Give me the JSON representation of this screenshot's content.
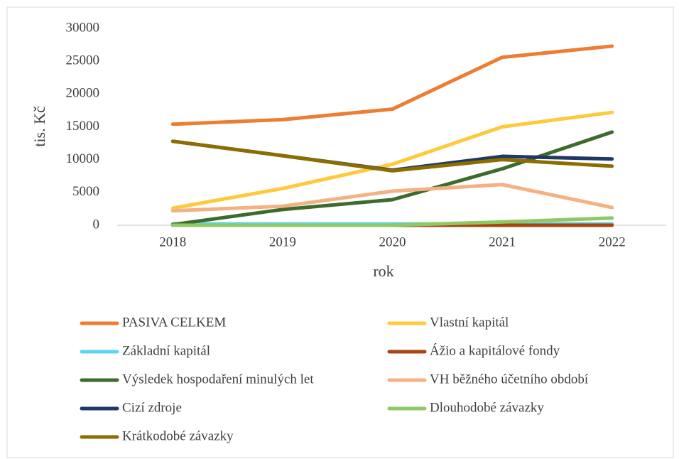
{
  "chart_data": {
    "type": "line",
    "x_label": "rok",
    "y_label": "tis. Kč",
    "categories": [
      "2018",
      "2019",
      "2020",
      "2021",
      "2022"
    ],
    "series": [
      {
        "name": "PASIVA CELKEM",
        "color": "#ed7d31",
        "values": [
          15400,
          16100,
          17700,
          25600,
          27300
        ]
      },
      {
        "name": "Vlastní kapitál",
        "color": "#ffc93c",
        "values": [
          2600,
          5600,
          9300,
          15000,
          17200
        ]
      },
      {
        "name": "Základní kapitál",
        "color": "#5fd3f3",
        "values": [
          200,
          200,
          200,
          200,
          200
        ]
      },
      {
        "name": "Ážio a kapitálové fondy",
        "color": "#a9440f",
        "values": [
          0,
          0,
          0,
          0,
          0
        ]
      },
      {
        "name": "Výsledek hospodaření minulých let",
        "color": "#3d6b2c",
        "values": [
          100,
          2400,
          3900,
          8600,
          14200
        ]
      },
      {
        "name": "VH běžného účetního období",
        "color": "#f4b183",
        "values": [
          2200,
          2900,
          5200,
          6200,
          2700
        ]
      },
      {
        "name": "Cizí zdroje",
        "color": "#203864",
        "values": [
          12800,
          10600,
          8400,
          10500,
          10100
        ]
      },
      {
        "name": "Dlouhodobé závazky",
        "color": "#8fc965",
        "values": [
          0,
          0,
          0,
          500,
          1100
        ]
      },
      {
        "name": "Krátkodobé závazky",
        "color": "#8c6d00",
        "values": [
          12800,
          10600,
          8300,
          10000,
          9000
        ]
      }
    ],
    "ylim": [
      0,
      30000
    ],
    "yticks": [
      0,
      5000,
      10000,
      15000,
      20000,
      25000,
      30000
    ],
    "grid": false,
    "legend": "bottom"
  }
}
